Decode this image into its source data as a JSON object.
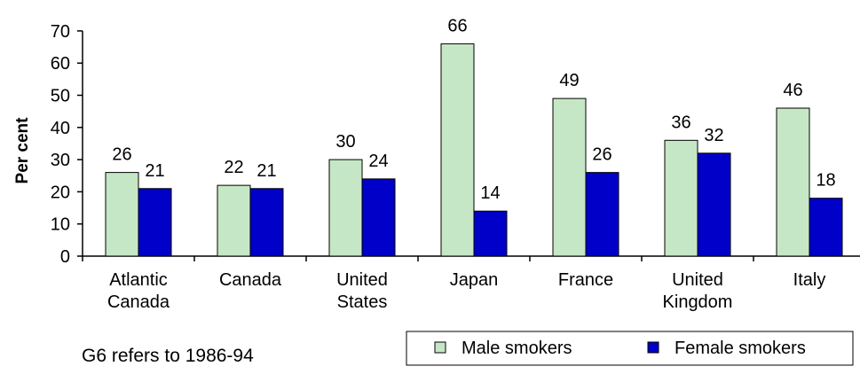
{
  "chart_data": {
    "type": "bar",
    "title": "",
    "xlabel": "",
    "ylabel": "Per cent",
    "ylim": [
      0,
      70
    ],
    "yticks": [
      0,
      10,
      20,
      30,
      40,
      50,
      60,
      70
    ],
    "grid": false,
    "legend_position": "bottom-right",
    "categories": [
      [
        "Atlantic",
        "Canada"
      ],
      [
        "Canada"
      ],
      [
        "United",
        "States"
      ],
      [
        "Japan"
      ],
      [
        "France"
      ],
      [
        "United",
        "Kingdom"
      ],
      [
        "Italy"
      ]
    ],
    "series": [
      {
        "name": "Male smokers",
        "color": "#c6e7c6",
        "values": [
          26,
          22,
          30,
          66,
          49,
          36,
          46
        ]
      },
      {
        "name": "Female smokers",
        "color": "#0000c8",
        "values": [
          21,
          21,
          24,
          14,
          26,
          32,
          18
        ]
      }
    ],
    "note": "G6 refers to 1986-94"
  }
}
